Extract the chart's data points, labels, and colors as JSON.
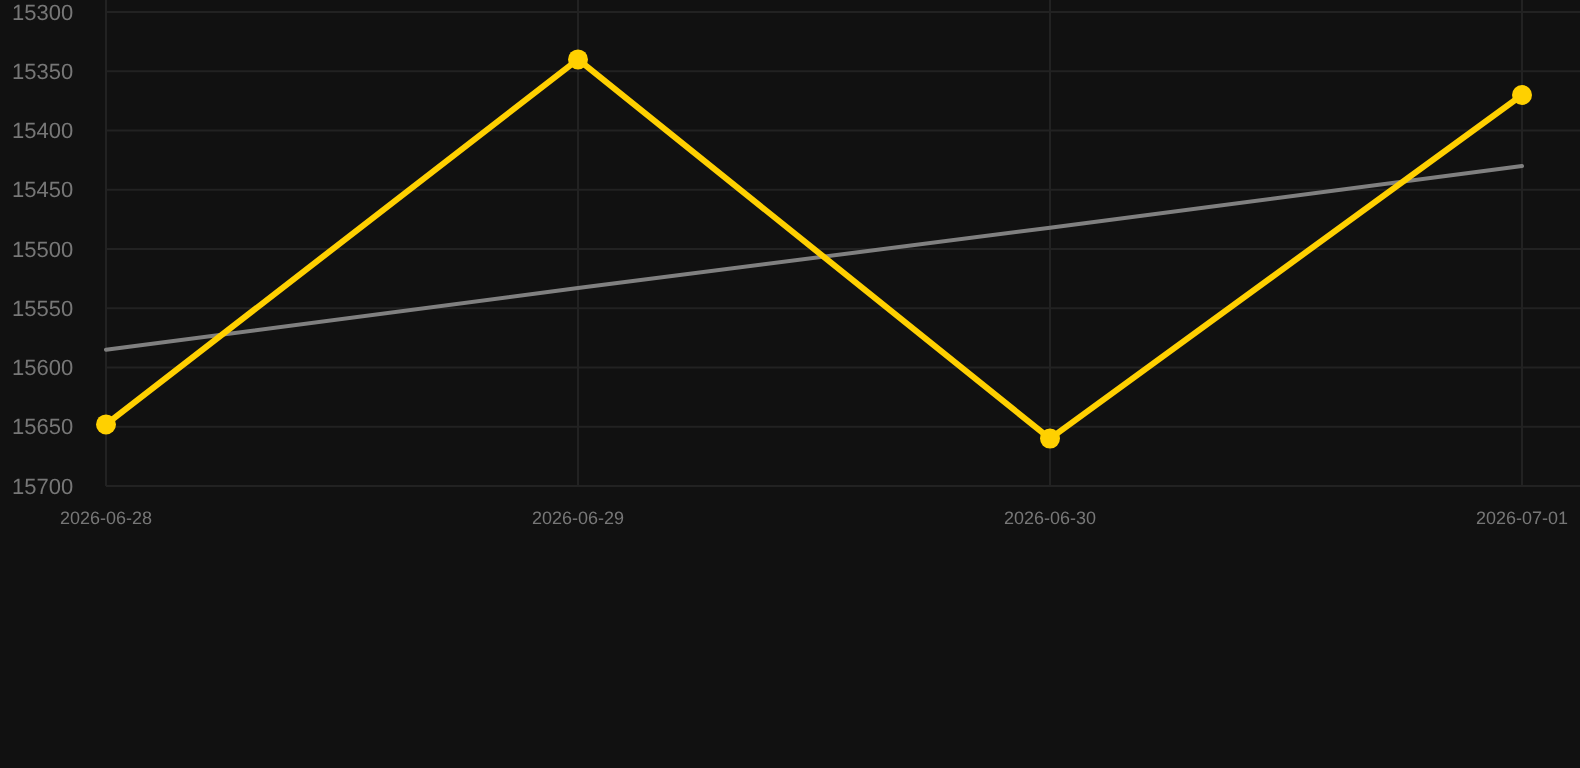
{
  "chart_data": {
    "type": "line",
    "categories": [
      "2026-06-28",
      "2026-06-29",
      "2026-06-30",
      "2026-07-01"
    ],
    "series": [
      {
        "color": "#ffd000",
        "values": [
          15648,
          15340,
          15660,
          15370
        ],
        "marker": "circle"
      },
      {
        "color": "#808080",
        "values": [
          15585,
          15533,
          15482,
          15430
        ],
        "marker": "none"
      }
    ],
    "ylim": [
      15700,
      15300
    ],
    "yticks": [
      15300,
      15350,
      15400,
      15450,
      15500,
      15550,
      15600,
      15650,
      15700
    ],
    "grid": true
  }
}
